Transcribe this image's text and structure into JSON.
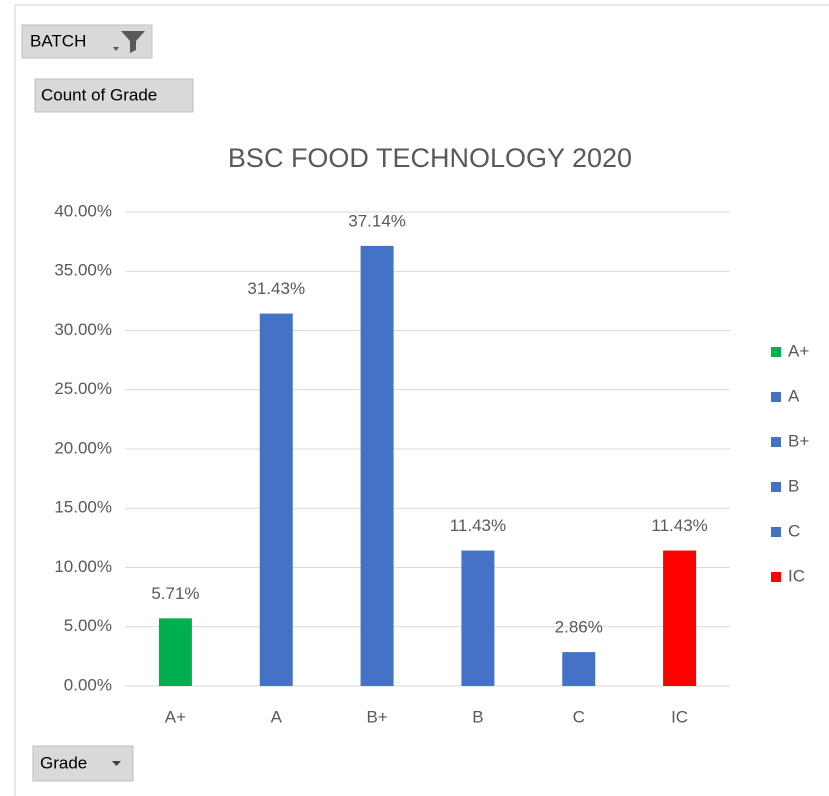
{
  "chart_data": {
    "type": "bar",
    "filter_button": "BATCH",
    "value_button": "Count of Grade",
    "axis_button": "Grade",
    "title": "BSC FOOD TECHNOLOGY 2020",
    "categories": [
      "A+",
      "A",
      "B+",
      "B",
      "C",
      "IC"
    ],
    "values": [
      5.71,
      31.43,
      37.14,
      11.43,
      2.86,
      11.43
    ],
    "value_labels": [
      "5.71%",
      "31.43%",
      "37.14%",
      "11.43%",
      "2.86%",
      "11.43%"
    ],
    "colors": [
      "#00b050",
      "#4472c4",
      "#4472c4",
      "#4472c4",
      "#4472c4",
      "#ff0000"
    ],
    "ylim": [
      0,
      40
    ],
    "yticks": [
      {
        "value": 0,
        "label": "0.00%"
      },
      {
        "value": 5,
        "label": "5.00%"
      },
      {
        "value": 10,
        "label": "10.00%"
      },
      {
        "value": 15,
        "label": "15.00%"
      },
      {
        "value": 20,
        "label": "20.00%"
      },
      {
        "value": 25,
        "label": "25.00%"
      },
      {
        "value": 30,
        "label": "30.00%"
      },
      {
        "value": 35,
        "label": "35.00%"
      },
      {
        "value": 40,
        "label": "40.00%"
      }
    ],
    "grid": true,
    "legend": "right"
  }
}
